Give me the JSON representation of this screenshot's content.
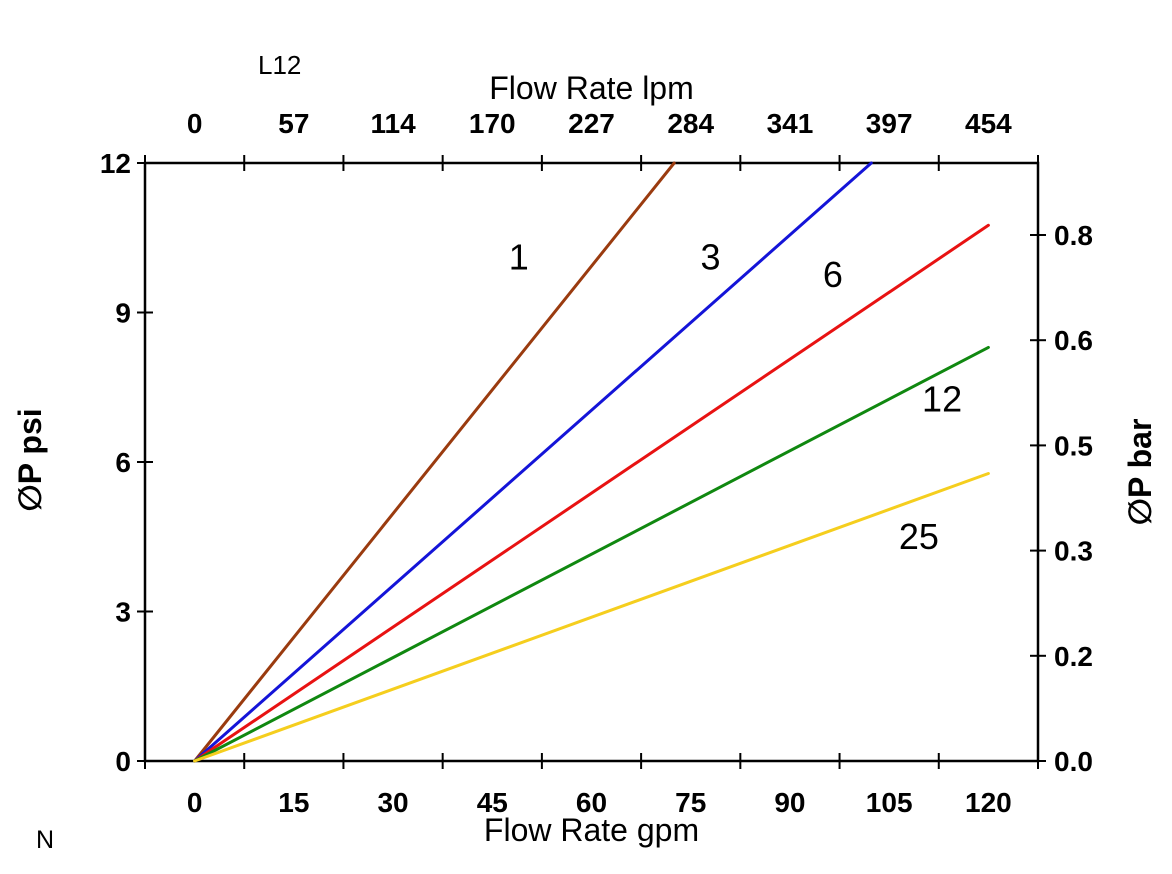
{
  "annotations": {
    "plot_note": "L12",
    "corner_note": "N"
  },
  "style": {
    "background": "#ffffff",
    "axis_color": "#000000",
    "text_color": "#000000"
  },
  "chart_data": {
    "type": "line",
    "title": "",
    "axes": {
      "top": {
        "label": "Flow Rate lpm",
        "ticks": [
          "0",
          "57",
          "114",
          "170",
          "227",
          "284",
          "341",
          "397",
          "454"
        ]
      },
      "bottom": {
        "label": "Flow Rate gpm",
        "ticks": [
          "0",
          "15",
          "30",
          "45",
          "60",
          "75",
          "90",
          "105",
          "120"
        ],
        "tick_values_gpm": [
          0,
          15,
          30,
          45,
          60,
          75,
          90,
          105,
          120
        ],
        "range_gpm": [
          -7.5,
          127.5
        ]
      },
      "left": {
        "label": "∅P psi",
        "ticks": [
          "0",
          "3",
          "6",
          "9",
          "12"
        ],
        "tick_values_psi": [
          0,
          3,
          6,
          9,
          12
        ],
        "range_psi": [
          0,
          12
        ]
      },
      "right": {
        "label": "∅P bar",
        "ticks": [
          "0.0",
          "0.2",
          "0.3",
          "0.5",
          "0.6",
          "0.8"
        ]
      }
    },
    "grid": false,
    "legend_position": "labels-on-lines",
    "series": [
      {
        "name": "1",
        "color": "#9A3B0F",
        "points_gpm_psi": [
          [
            0,
            0
          ],
          [
            72.5,
            12
          ]
        ],
        "label": {
          "text": "1",
          "gpm": 49.0,
          "psi": 10.1
        }
      },
      {
        "name": "3",
        "color": "#1414D8",
        "points_gpm_psi": [
          [
            0,
            0
          ],
          [
            102.3,
            12
          ]
        ],
        "label": {
          "text": "3",
          "gpm": 78.0,
          "psi": 10.1
        }
      },
      {
        "name": "6",
        "color": "#E81212",
        "points_gpm_psi": [
          [
            0,
            0
          ],
          [
            120,
            10.75
          ]
        ],
        "label": {
          "text": "6",
          "gpm": 96.5,
          "psi": 9.75
        }
      },
      {
        "name": "12",
        "color": "#108810",
        "points_gpm_psi": [
          [
            0,
            0
          ],
          [
            120,
            8.3
          ]
        ],
        "label": {
          "text": "12",
          "gpm": 113.0,
          "psi": 7.25
        }
      },
      {
        "name": "25",
        "color": "#F5CE1E",
        "points_gpm_psi": [
          [
            0,
            0
          ],
          [
            120,
            5.77
          ]
        ],
        "label": {
          "text": "25",
          "gpm": 109.5,
          "psi": 4.5
        }
      }
    ]
  }
}
